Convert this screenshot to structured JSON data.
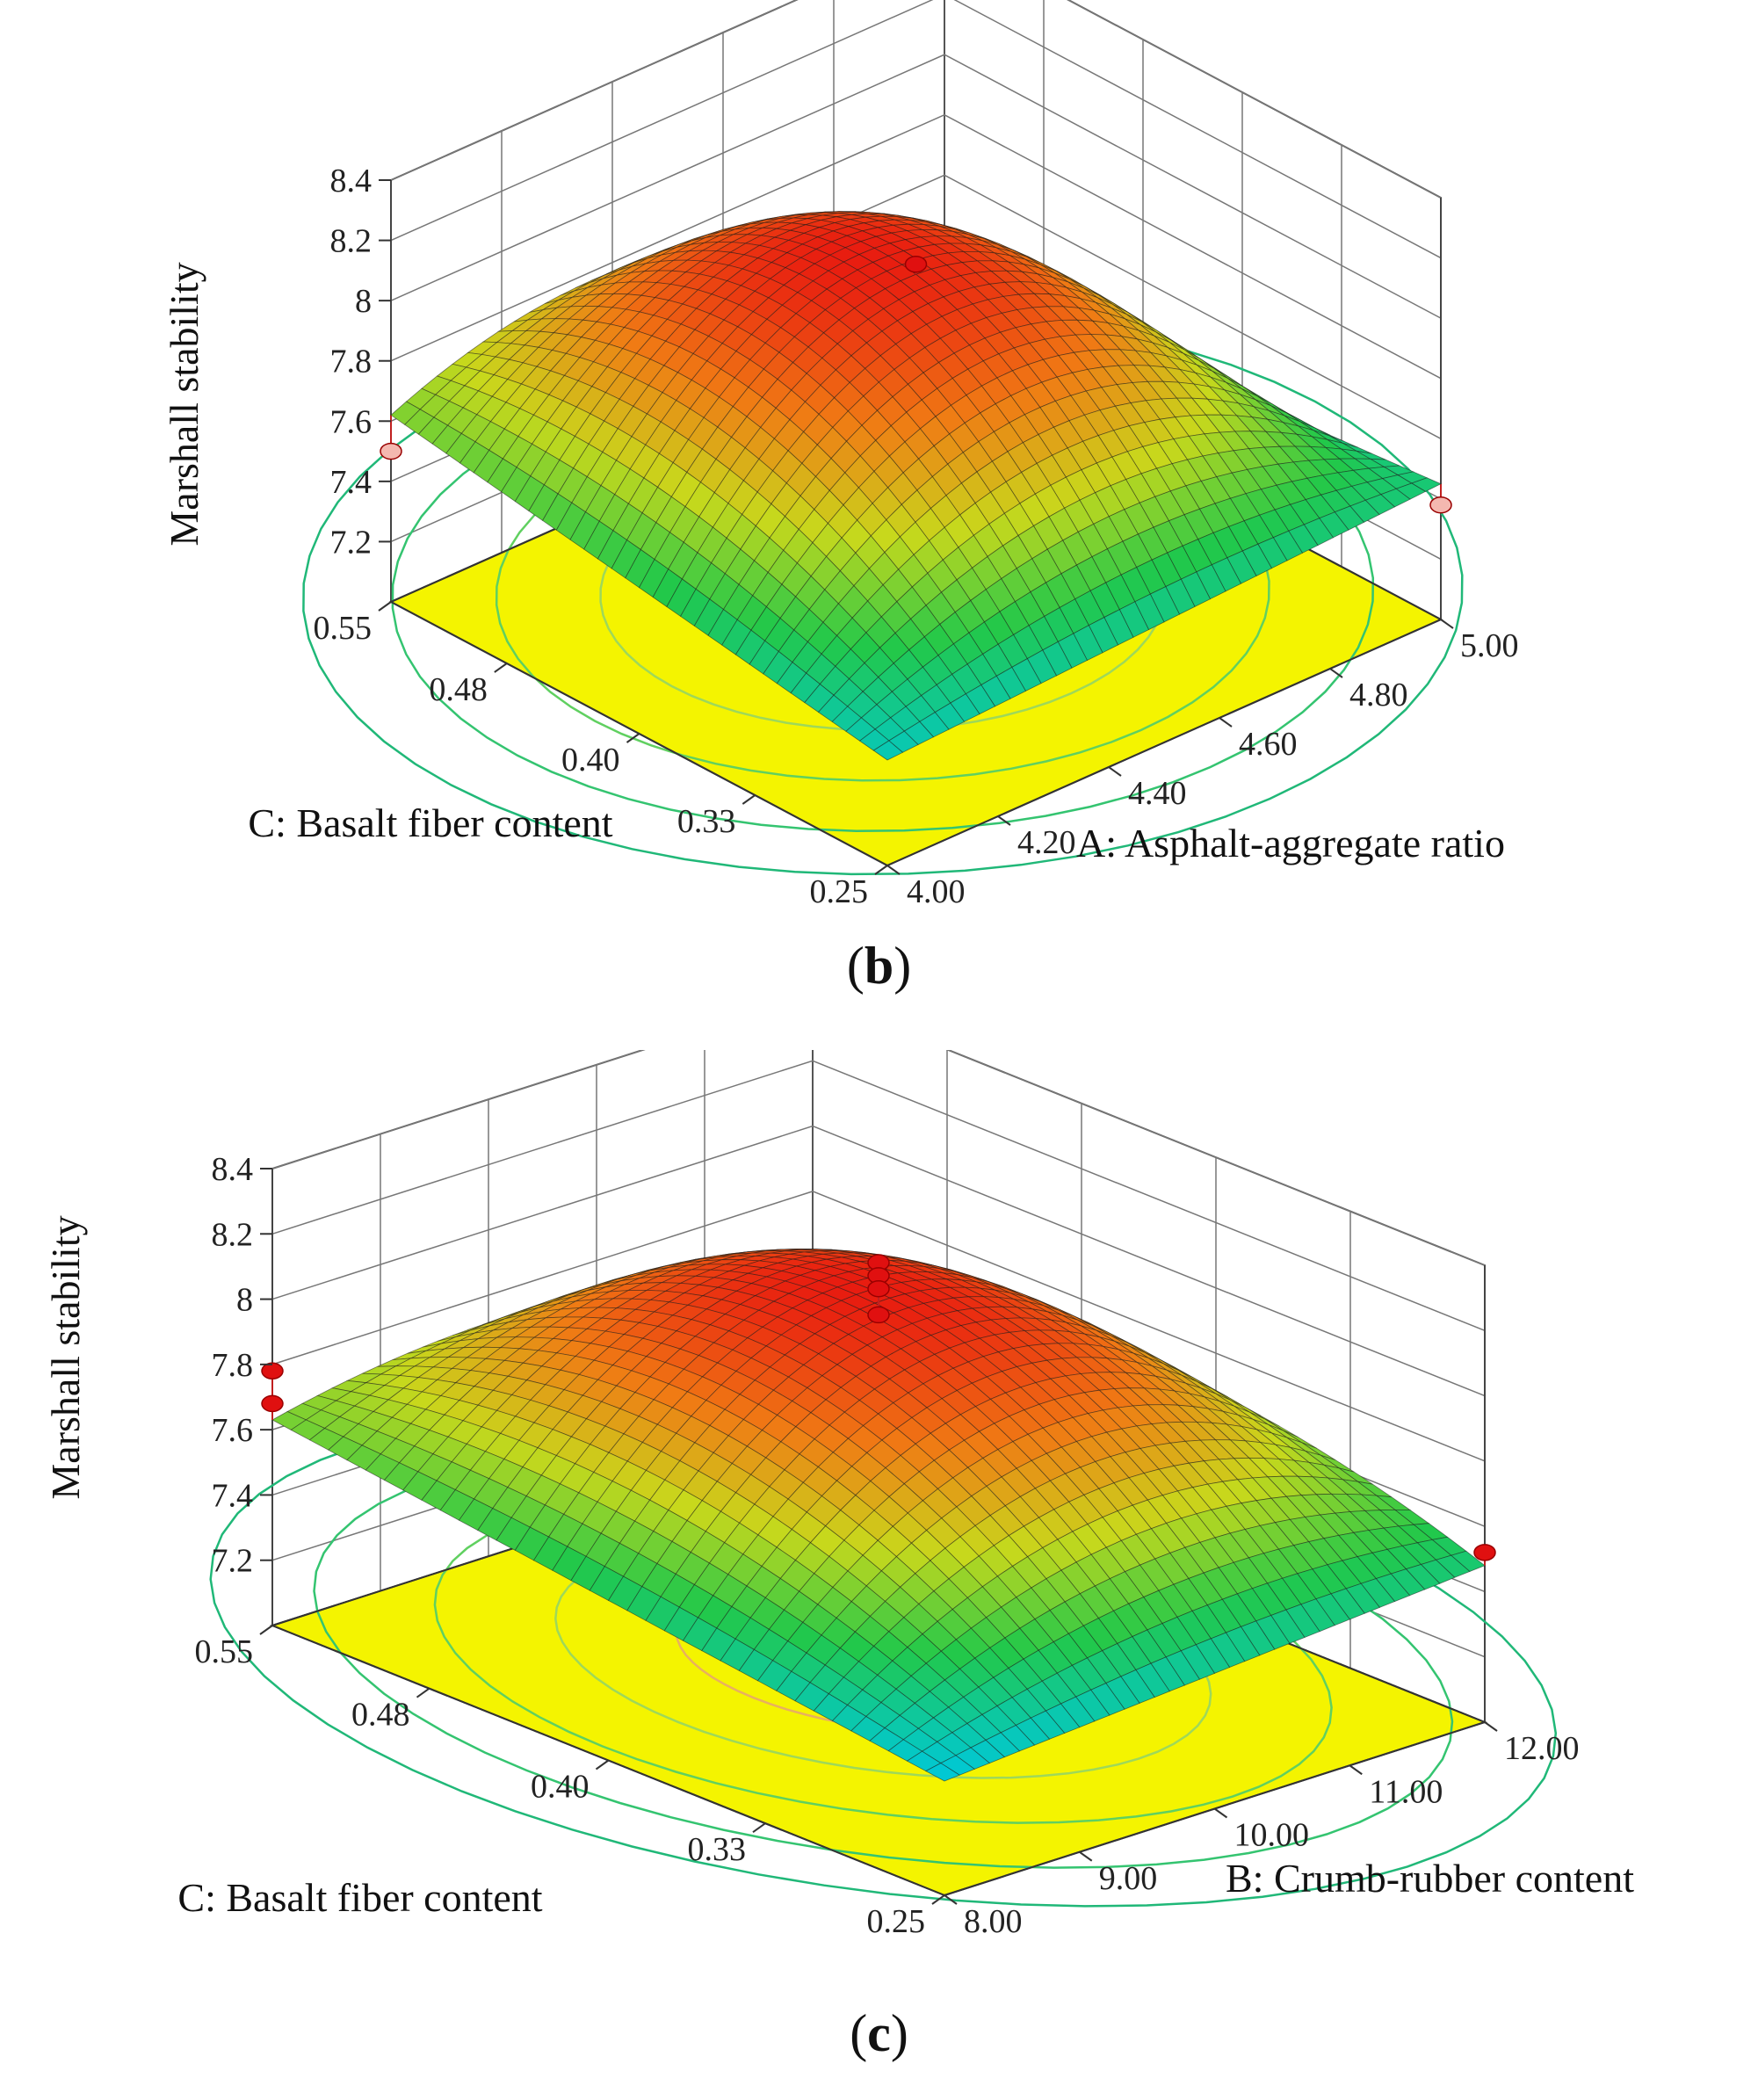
{
  "chart_data": [
    {
      "type": "surface3d",
      "panel": "b",
      "caption_letter": "b",
      "zlabel": "Marshall stability",
      "xlabel": "A: Asphalt-aggregate ratio",
      "ylabel": "C: Basalt fiber content",
      "zticks": [
        "7.2",
        "7.4",
        "7.6",
        "7.8",
        "8",
        "8.2",
        "8.4"
      ],
      "zlim": [
        7.0,
        8.4
      ],
      "xticks": [
        "4.00",
        "4.20",
        "4.40",
        "4.60",
        "4.80",
        "5.00"
      ],
      "xlim": [
        4.0,
        5.0
      ],
      "yticks": [
        "0.25",
        "0.33",
        "0.40",
        "0.48",
        "0.55"
      ],
      "ylim": [
        0.25,
        0.55
      ],
      "surface_corner_values": {
        "x_min_y_min": 7.35,
        "x_max_y_min": 7.45,
        "x_min_y_max": 7.62,
        "x_max_y_max": 7.3
      },
      "surface_peak": {
        "x": 4.5,
        "y": 0.42,
        "z": 8.13
      },
      "design_points": [
        {
          "x": 4.5,
          "y": 0.4,
          "z": 8.15
        },
        {
          "x": 4.5,
          "y": 0.4,
          "z": 8.1
        },
        {
          "x": 4.5,
          "y": 0.4,
          "z": 8.07
        },
        {
          "x": 4.0,
          "y": 0.55,
          "z": 7.5
        },
        {
          "x": 5.0,
          "y": 0.25,
          "z": 7.38
        }
      ],
      "colorscale": [
        "#00c8d8",
        "#22c84a",
        "#c8d81c",
        "#f07a14",
        "#e81c10"
      ]
    },
    {
      "type": "surface3d",
      "panel": "c",
      "caption_letter": "c",
      "zlabel": "Marshall stability",
      "xlabel": "B: Crumb-rubber content",
      "ylabel": "C: Basalt fiber content",
      "zticks": [
        "7.2",
        "7.4",
        "7.6",
        "7.8",
        "8",
        "8.2",
        "8.4"
      ],
      "zlim": [
        7.0,
        8.4
      ],
      "xticks": [
        "8.00",
        "9.00",
        "10.00",
        "11.00",
        "12.00"
      ],
      "xlim": [
        8.0,
        12.0
      ],
      "yticks": [
        "0.25",
        "0.33",
        "0.40",
        "0.48",
        "0.55"
      ],
      "ylim": [
        0.25,
        0.55
      ],
      "surface_corner_values": {
        "x_min_y_min": 7.35,
        "x_max_y_min": 7.48,
        "x_min_y_max": 7.63,
        "x_max_y_max": 7.52
      },
      "surface_peak": {
        "x": 10.2,
        "y": 0.41,
        "z": 8.1
      },
      "design_points": [
        {
          "x": 10.0,
          "y": 0.4,
          "z": 8.26
        },
        {
          "x": 10.0,
          "y": 0.4,
          "z": 8.22
        },
        {
          "x": 10.0,
          "y": 0.4,
          "z": 8.18
        },
        {
          "x": 10.0,
          "y": 0.4,
          "z": 8.1
        },
        {
          "x": 8.0,
          "y": 0.55,
          "z": 7.78
        },
        {
          "x": 8.0,
          "y": 0.55,
          "z": 7.68
        },
        {
          "x": 12.0,
          "y": 0.25,
          "z": 7.52
        }
      ],
      "colorscale": [
        "#00c8d8",
        "#22c84a",
        "#c8d81c",
        "#f07a14",
        "#e81c10"
      ]
    }
  ]
}
